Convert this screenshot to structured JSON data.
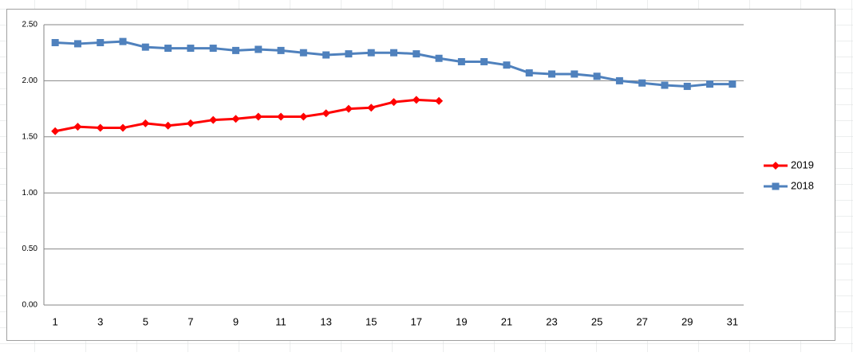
{
  "chart_data": {
    "type": "line",
    "categories": [
      1,
      null,
      3,
      null,
      5,
      null,
      7,
      null,
      9,
      null,
      11,
      null,
      13,
      null,
      15,
      null,
      17,
      null,
      19,
      null,
      21,
      null,
      23,
      null,
      25,
      null,
      27,
      null,
      29,
      null,
      31
    ],
    "series": [
      {
        "name": "2019",
        "color": "#ff0000",
        "marker": "diamond",
        "values": [
          1.55,
          1.59,
          1.58,
          1.58,
          1.62,
          1.6,
          1.62,
          1.65,
          1.66,
          1.68,
          1.68,
          1.68,
          1.71,
          1.75,
          1.76,
          1.81,
          1.83,
          1.82,
          null,
          null,
          null,
          null,
          null,
          null,
          null,
          null,
          null,
          null,
          null,
          null,
          null
        ]
      },
      {
        "name": "2018",
        "color": "#4f81bd",
        "marker": "square",
        "values": [
          2.34,
          2.33,
          2.34,
          2.35,
          2.3,
          2.29,
          2.29,
          2.29,
          2.27,
          2.28,
          2.27,
          2.25,
          2.23,
          2.24,
          2.25,
          2.25,
          2.24,
          2.2,
          2.17,
          2.17,
          2.14,
          2.07,
          2.06,
          2.06,
          2.04,
          2.0,
          1.98,
          1.96,
          1.95,
          1.97,
          1.97
        ]
      }
    ],
    "ylim": [
      0,
      2.5
    ],
    "yticks": [
      {
        "value": 0,
        "label": "0.00"
      },
      {
        "value": 0.5,
        "label": "0.50"
      },
      {
        "value": 1,
        "label": "1.00"
      },
      {
        "value": 1.5,
        "label": "1.50"
      },
      {
        "value": 2,
        "label": "2.00"
      },
      {
        "value": 2.5,
        "label": "2.50"
      }
    ],
    "grid": true,
    "legend": "right"
  }
}
